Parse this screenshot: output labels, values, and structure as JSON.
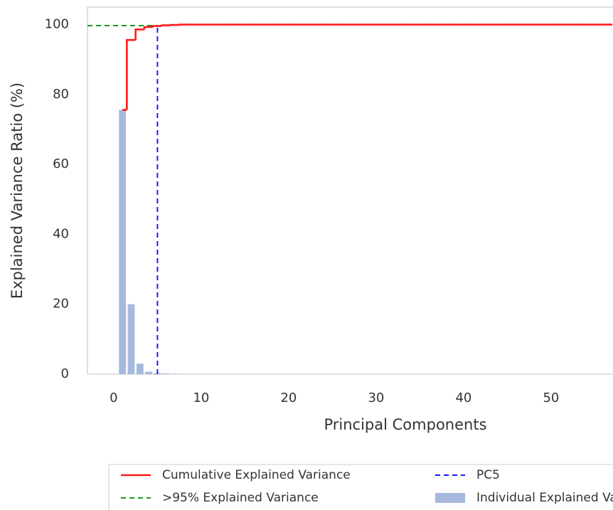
{
  "chart_data": {
    "type": "combo",
    "x_label": "Principal Components",
    "y_label": "Explained Variance Ratio (%)",
    "xlim": [
      -3,
      57
    ],
    "ylim": [
      0,
      105
    ],
    "xticks": [
      0,
      10,
      20,
      30,
      40,
      50
    ],
    "yticks": [
      0,
      20,
      40,
      60,
      80,
      100
    ],
    "grid": false,
    "legend_position": "bottom",
    "x": [
      1,
      2,
      3,
      4,
      5,
      6,
      7,
      8,
      9,
      10,
      11,
      12,
      13,
      14,
      15,
      16,
      17,
      18,
      19,
      20,
      21,
      22,
      23,
      24,
      25,
      26,
      27,
      28,
      29,
      30,
      31,
      32,
      33,
      34,
      35,
      36,
      37,
      38,
      39,
      40,
      41,
      42,
      43,
      44,
      45,
      46,
      47,
      48,
      49,
      50,
      51,
      52,
      53,
      54,
      55,
      56,
      57
    ],
    "series": [
      {
        "name": "Cumulative Explained Variance",
        "type": "step",
        "color": "#ff1a1a",
        "values": [
          75.6,
          95.6,
          98.6,
          99.3,
          99.6,
          99.8,
          99.9,
          100,
          100,
          100,
          100,
          100,
          100,
          100,
          100,
          100,
          100,
          100,
          100,
          100,
          100,
          100,
          100,
          100,
          100,
          100,
          100,
          100,
          100,
          100,
          100,
          100,
          100,
          100,
          100,
          100,
          100,
          100,
          100,
          100,
          100,
          100,
          100,
          100,
          100,
          100,
          100,
          100,
          100,
          100,
          100,
          100,
          100,
          100,
          100,
          100,
          100
        ]
      },
      {
        "name": "Individual Explained Variance",
        "type": "bar",
        "color": "#a6b9dc",
        "values": [
          75.6,
          20.0,
          3.0,
          0.7,
          0.3,
          0.2,
          0.1,
          0.1,
          0,
          0,
          0,
          0,
          0,
          0,
          0,
          0,
          0,
          0,
          0,
          0,
          0,
          0,
          0,
          0,
          0,
          0,
          0,
          0,
          0,
          0,
          0,
          0,
          0,
          0,
          0,
          0,
          0,
          0,
          0,
          0,
          0,
          0,
          0,
          0,
          0,
          0,
          0,
          0,
          0,
          0,
          0,
          0,
          0,
          0,
          0,
          0,
          0
        ]
      }
    ],
    "reference_lines": [
      {
        "name": ">95% Explained Variance",
        "orientation": "horizontal",
        "value": 99.7,
        "to": 5,
        "color": "#1a9a1a"
      },
      {
        "name": "PC5",
        "orientation": "vertical",
        "value": 5,
        "to": 100,
        "color": "#1a1aff"
      }
    ]
  }
}
